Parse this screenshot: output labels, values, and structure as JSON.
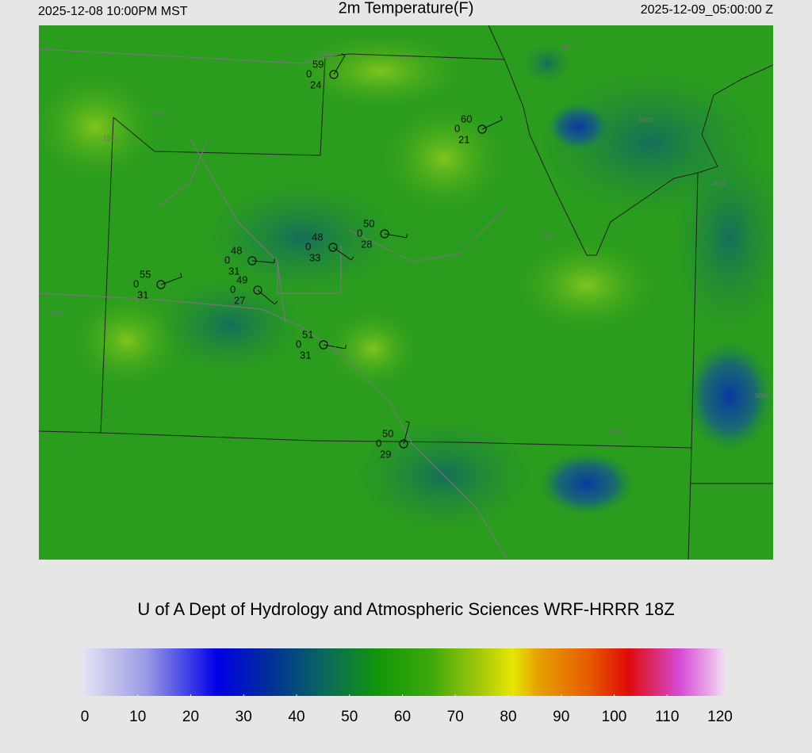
{
  "header": {
    "valid_local": "2025-12-08 10:00PM MST",
    "title": "2m Temperature(F)",
    "valid_utc": "2025-12-09_05:00:00 Z"
  },
  "stations": [
    {
      "temperature": 59,
      "wind": 0,
      "dewpoint": 24
    },
    {
      "temperature": 60,
      "wind": 0,
      "dewpoint": 21
    },
    {
      "temperature": 50,
      "wind": 0,
      "dewpoint": 28
    },
    {
      "temperature": 48,
      "wind": 0,
      "dewpoint": 33
    },
    {
      "temperature": 48,
      "wind": 0,
      "dewpoint": 31
    },
    {
      "temperature": 55,
      "wind": 0,
      "dewpoint": 31
    },
    {
      "temperature": 49,
      "wind": 0,
      "dewpoint": 27
    },
    {
      "temperature": 51,
      "wind": 0,
      "dewpoint": 31
    },
    {
      "temperature": 50,
      "wind": 0,
      "dewpoint": 29
    }
  ],
  "contour_labels": [
    "1500",
    "1500",
    "2000",
    "2000",
    "4000",
    "3500",
    "4000",
    "3000",
    "5000",
    "4000"
  ],
  "credit": "U of A Dept of Hydrology and Atmospheric Sciences WRF-HRRR 18Z",
  "colorbar": {
    "range": [
      0,
      120
    ],
    "ticks": [
      0,
      10,
      20,
      30,
      40,
      50,
      60,
      70,
      80,
      90,
      100,
      110,
      120
    ]
  }
}
